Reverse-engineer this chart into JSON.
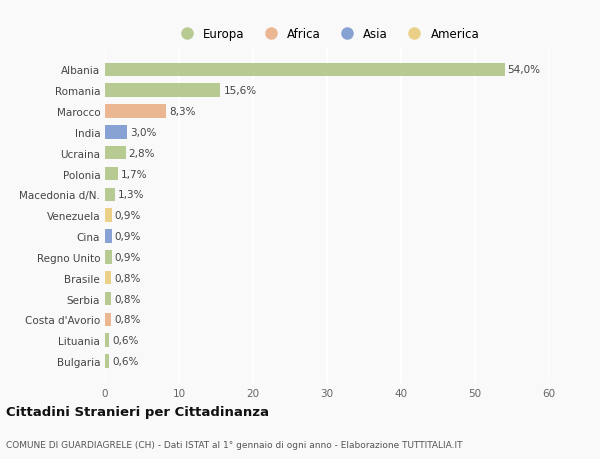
{
  "categories": [
    "Bulgaria",
    "Lituania",
    "Costa d'Avorio",
    "Serbia",
    "Brasile",
    "Regno Unito",
    "Cina",
    "Venezuela",
    "Macedonia d/N.",
    "Polonia",
    "Ucraina",
    "India",
    "Marocco",
    "Romania",
    "Albania"
  ],
  "values": [
    0.6,
    0.6,
    0.8,
    0.8,
    0.8,
    0.9,
    0.9,
    0.9,
    1.3,
    1.7,
    2.8,
    3.0,
    8.3,
    15.6,
    54.0
  ],
  "labels": [
    "0,6%",
    "0,6%",
    "0,8%",
    "0,8%",
    "0,8%",
    "0,9%",
    "0,9%",
    "0,9%",
    "1,3%",
    "1,7%",
    "2,8%",
    "3,0%",
    "8,3%",
    "15,6%",
    "54,0%"
  ],
  "colors": [
    "#a8c07a",
    "#a8c07a",
    "#e8a87c",
    "#a8c07a",
    "#e8c96e",
    "#a8c07a",
    "#6e8ecb",
    "#e8c96e",
    "#a8c07a",
    "#a8c07a",
    "#a8c07a",
    "#6e8ecb",
    "#e8a87c",
    "#a8c07a",
    "#a8c07a"
  ],
  "legend": [
    {
      "label": "Europa",
      "color": "#a8c07a"
    },
    {
      "label": "Africa",
      "color": "#e8a87c"
    },
    {
      "label": "Asia",
      "color": "#6e8ecb"
    },
    {
      "label": "America",
      "color": "#e8c96e"
    }
  ],
  "xlim": [
    0,
    60
  ],
  "xticks": [
    0,
    10,
    20,
    30,
    40,
    50,
    60
  ],
  "title": "Cittadini Stranieri per Cittadinanza",
  "subtitle": "COMUNE DI GUARDIAGRELE (CH) - Dati ISTAT al 1° gennaio di ogni anno - Elaborazione TUTTITALIA.IT",
  "bg_color": "#f9f9f9",
  "grid_color": "#ffffff",
  "bar_alpha": 0.82,
  "label_fontsize": 7.5,
  "tick_fontsize": 7.5,
  "title_fontsize": 9.5,
  "subtitle_fontsize": 6.5,
  "legend_fontsize": 8.5
}
